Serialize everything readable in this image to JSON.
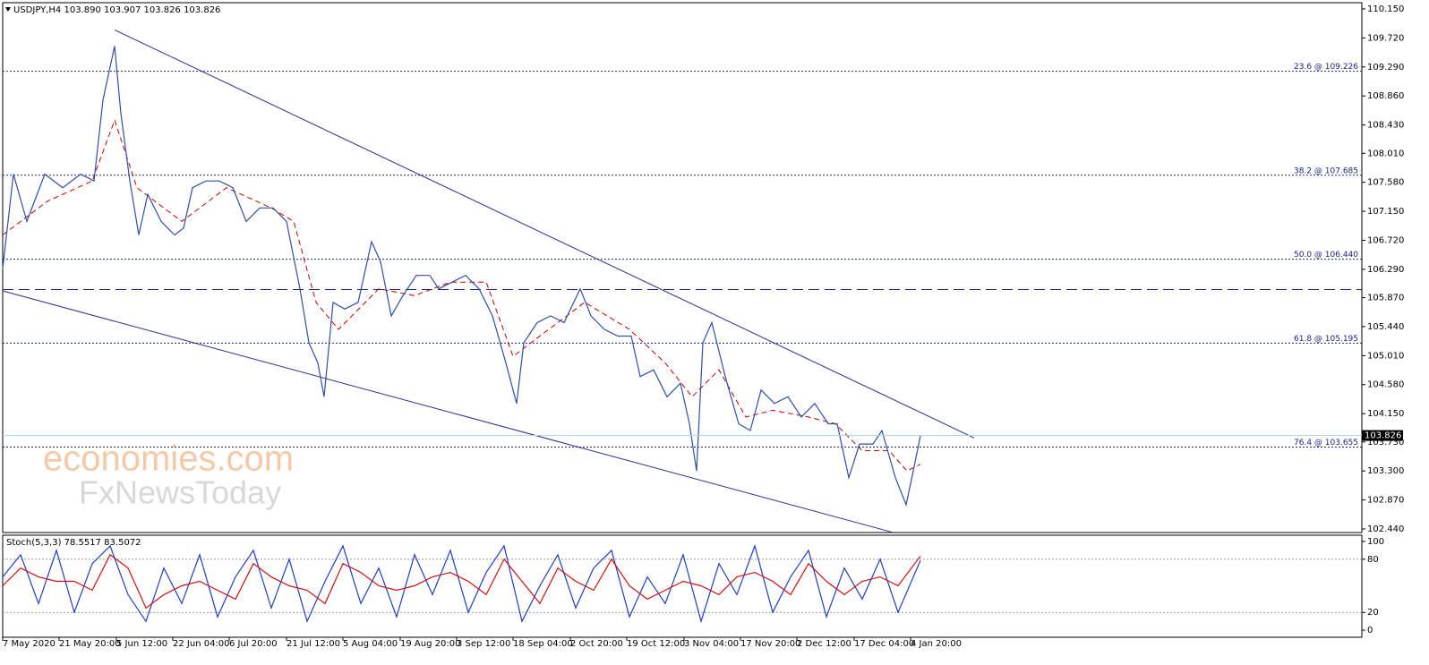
{
  "chart_data": [
    {
      "type": "candlestick-line",
      "title": "USDJPY,H4  103.890 103.907 103.826 103.826",
      "watermark": [
        "economies.com",
        "FxNewsToday"
      ],
      "xlim": [
        0,
        1518
      ],
      "ylim": [
        102.387,
        110.243
      ],
      "xticks": [
        {
          "value": 0,
          "label": "7 May 2020"
        },
        {
          "value": 63,
          "label": "21 May 20:00"
        },
        {
          "value": 127,
          "label": "5 Jun 12:00"
        },
        {
          "value": 190,
          "label": "22 Jun 04:00"
        },
        {
          "value": 253,
          "label": "6 Jul 20:00"
        },
        {
          "value": 317,
          "label": "21 Jul 12:00"
        },
        {
          "value": 380,
          "label": "5 Aug 04:00"
        },
        {
          "value": 444,
          "label": "19 Aug 20:00"
        },
        {
          "value": 507,
          "label": "3 Sep 12:00"
        },
        {
          "value": 570,
          "label": "18 Sep 04:00"
        },
        {
          "value": 634,
          "label": "2 Oct 20:00"
        },
        {
          "value": 697,
          "label": "19 Oct 12:00"
        },
        {
          "value": 761,
          "label": "3 Nov 04:00"
        },
        {
          "value": 824,
          "label": "17 Nov 20:00"
        },
        {
          "value": 887,
          "label": "2 Dec 12:00"
        },
        {
          "value": 951,
          "label": "17 Dec 04:00"
        },
        {
          "value": 1014,
          "label": "4 Jan 20:00"
        }
      ],
      "yticks": [
        {
          "value": 110.15,
          "label": "110.150"
        },
        {
          "value": 109.72,
          "label": "109.720"
        },
        {
          "value": 109.29,
          "label": "109.290"
        },
        {
          "value": 108.86,
          "label": "108.860"
        },
        {
          "value": 108.43,
          "label": "108.430"
        },
        {
          "value": 108.01,
          "label": "108.010"
        },
        {
          "value": 107.58,
          "label": "107.580"
        },
        {
          "value": 107.15,
          "label": "107.150"
        },
        {
          "value": 106.72,
          "label": "106.720"
        },
        {
          "value": 106.29,
          "label": "106.290"
        },
        {
          "value": 105.87,
          "label": "105.870"
        },
        {
          "value": 105.44,
          "label": "105.440"
        },
        {
          "value": 105.01,
          "label": "105.010"
        },
        {
          "value": 104.58,
          "label": "104.580"
        },
        {
          "value": 104.15,
          "label": "104.150"
        },
        {
          "value": 103.73,
          "label": "103.730"
        },
        {
          "value": 103.3,
          "label": "103.300"
        },
        {
          "value": 102.87,
          "label": "102.870"
        },
        {
          "value": 102.44,
          "label": "102.440"
        }
      ],
      "series": [
        {
          "color": "#2f4fa8",
          "x": [
            0,
            12,
            27,
            47,
            67,
            87,
            102,
            112,
            125,
            132,
            142,
            152,
            162,
            177,
            192,
            202,
            212,
            227,
            242,
            257,
            272,
            287,
            302,
            317,
            332,
            342,
            352,
            359,
            369,
            382,
            397,
            412,
            422,
            434,
            447,
            462,
            477,
            487,
            502,
            517,
            532,
            547,
            562,
            574,
            582,
            597,
            612,
            627,
            645,
            657,
            672,
            687,
            702,
            712,
            727,
            742,
            757,
            767,
            775,
            782,
            792,
            807,
            822,
            835,
            847,
            862,
            877,
            892,
            907,
            922,
            932,
            945,
            957,
            972,
            982,
            997,
            1009,
            1017,
            1025
          ],
          "values": [
            106.3,
            107.7,
            107.0,
            107.7,
            107.5,
            107.7,
            107.6,
            108.8,
            109.6,
            108.6,
            107.6,
            106.8,
            107.4,
            107.0,
            106.8,
            106.9,
            107.5,
            107.6,
            107.6,
            107.5,
            107.0,
            107.2,
            107.2,
            107.0,
            106.0,
            105.2,
            104.9,
            104.4,
            105.8,
            105.7,
            105.8,
            106.7,
            106.4,
            105.6,
            105.9,
            106.2,
            106.2,
            106.0,
            106.1,
            106.2,
            106.0,
            105.6,
            104.9,
            104.3,
            105.2,
            105.5,
            105.6,
            105.5,
            106.0,
            105.6,
            105.4,
            105.3,
            105.3,
            104.7,
            104.8,
            104.4,
            104.6,
            104.0,
            103.3,
            105.2,
            105.5,
            104.7,
            104.0,
            103.9,
            104.5,
            104.3,
            104.4,
            104.1,
            104.3,
            104.0,
            104.0,
            103.2,
            103.7,
            103.7,
            103.9,
            103.2,
            102.8,
            103.3,
            103.826
          ]
        }
      ],
      "moving_average": {
        "color": "#c00000",
        "x": [
          0,
          50,
          100,
          125,
          150,
          200,
          250,
          300,
          325,
          350,
          375,
          420,
          460,
          500,
          540,
          570,
          600,
          650,
          700,
          740,
          770,
          800,
          830,
          860,
          900,
          930,
          960,
          990,
          1010,
          1025
        ],
        "values": [
          106.8,
          107.3,
          107.6,
          108.5,
          107.5,
          107.0,
          107.5,
          107.2,
          107.0,
          105.8,
          105.4,
          106.0,
          105.9,
          106.1,
          106.1,
          105.0,
          105.3,
          105.8,
          105.4,
          104.9,
          104.4,
          104.8,
          104.1,
          104.2,
          104.1,
          104.0,
          103.6,
          103.6,
          103.3,
          103.4
        ]
      },
      "trendlines": [
        {
          "color": "#2a2f8f",
          "x": [
            125,
            1085
          ],
          "values": [
            109.84,
            103.79
          ]
        },
        {
          "color": "#2a2f8f",
          "x": [
            0,
            994
          ],
          "values": [
            105.97,
            102.39
          ]
        }
      ],
      "dashed_level": 105.99,
      "fib_levels": [
        {
          "value": 109.226,
          "label": "23.6 @ 109.226"
        },
        {
          "value": 107.685,
          "label": "38.2 @ 107.685"
        },
        {
          "value": 106.44,
          "label": "50.0 @ 106.440"
        },
        {
          "value": 105.195,
          "label": "61.8 @ 105.195"
        },
        {
          "value": 103.655,
          "label": "76.4 @ 103.655"
        }
      ],
      "current_price": {
        "value": 103.826,
        "label": "103.826"
      }
    },
    {
      "type": "oscillator",
      "title": "Stoch(5,3,3) 78.5517 83.5072",
      "ylim": [
        -8,
        107
      ],
      "yticks": [
        100,
        80,
        20,
        0
      ],
      "series": [
        {
          "color": "#1f3fbf",
          "x": [
            0,
            20,
            40,
            60,
            80,
            100,
            120,
            140,
            160,
            180,
            200,
            220,
            240,
            260,
            280,
            300,
            320,
            340,
            360,
            380,
            400,
            420,
            440,
            460,
            480,
            500,
            520,
            540,
            560,
            580,
            600,
            620,
            640,
            660,
            680,
            700,
            720,
            740,
            760,
            780,
            800,
            820,
            840,
            860,
            880,
            900,
            920,
            940,
            960,
            980,
            1000,
            1025
          ],
          "values": [
            60,
            85,
            30,
            90,
            20,
            75,
            95,
            40,
            10,
            70,
            30,
            85,
            15,
            60,
            90,
            25,
            80,
            10,
            55,
            95,
            30,
            70,
            15,
            85,
            40,
            90,
            20,
            65,
            95,
            10,
            50,
            85,
            25,
            70,
            90,
            15,
            60,
            30,
            85,
            10,
            75,
            40,
            95,
            20,
            60,
            90,
            15,
            70,
            35,
            80,
            20,
            78.5517
          ]
        },
        {
          "color": "#d01010",
          "x": [
            0,
            20,
            40,
            60,
            80,
            100,
            120,
            140,
            160,
            180,
            200,
            220,
            240,
            260,
            280,
            300,
            320,
            340,
            360,
            380,
            400,
            420,
            440,
            460,
            480,
            500,
            520,
            540,
            560,
            580,
            600,
            620,
            640,
            660,
            680,
            700,
            720,
            740,
            760,
            780,
            800,
            820,
            840,
            860,
            880,
            900,
            920,
            940,
            960,
            980,
            1000,
            1025
          ],
          "values": [
            50,
            70,
            60,
            55,
            55,
            45,
            85,
            70,
            25,
            40,
            50,
            55,
            45,
            35,
            75,
            60,
            50,
            45,
            30,
            75,
            65,
            50,
            45,
            50,
            60,
            65,
            55,
            40,
            80,
            55,
            30,
            70,
            55,
            45,
            80,
            50,
            35,
            45,
            55,
            50,
            40,
            60,
            65,
            55,
            40,
            75,
            55,
            40,
            55,
            60,
            50,
            83.5072
          ]
        }
      ]
    }
  ]
}
